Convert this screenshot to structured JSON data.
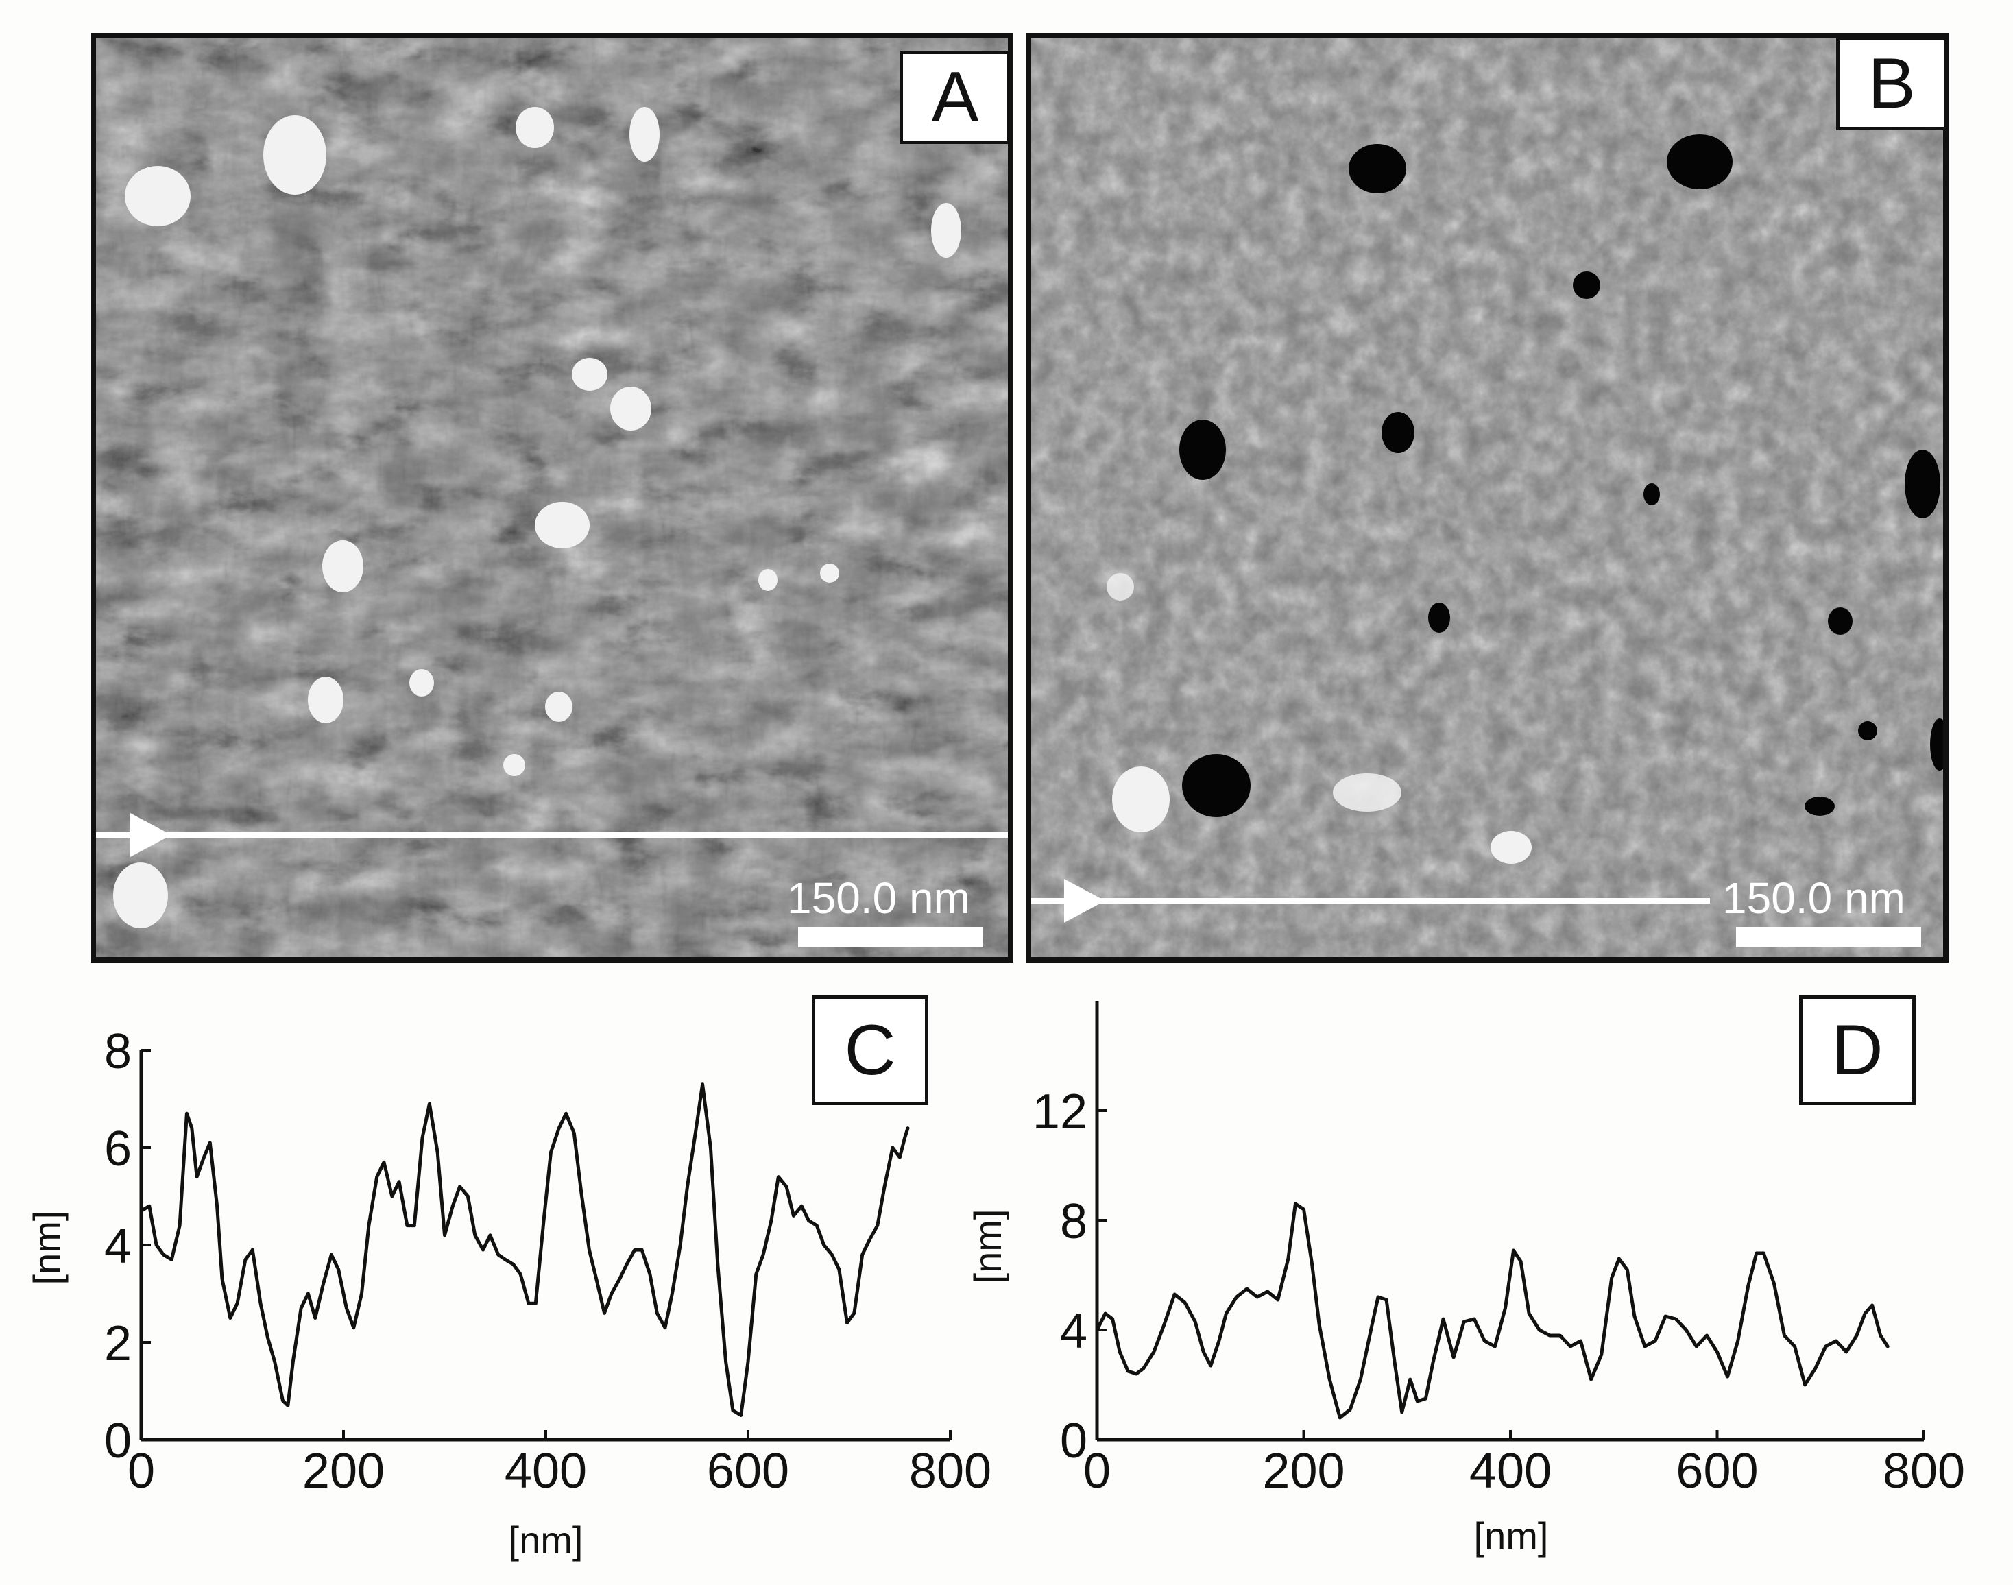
{
  "panels": {
    "a": {
      "label": "A",
      "scale_bar_text": "150.0 nm",
      "scale_bar_nm": 150
    },
    "b": {
      "label": "B",
      "scale_bar_text": "150.0 nm",
      "scale_bar_nm": 150
    },
    "c": {
      "label": "C"
    },
    "d": {
      "label": "D"
    }
  },
  "colors": {
    "line": "#111111",
    "profile_line": "#ffffff",
    "background": "#fdfdfb"
  },
  "chart_data": [
    {
      "type": "line",
      "panel": "C",
      "xlabel": "[nm]",
      "ylabel": "[nm]",
      "xlim": [
        0,
        800
      ],
      "ylim": [
        0,
        8
      ],
      "x_ticks": [
        0,
        200,
        400,
        600,
        800
      ],
      "y_ticks": [
        0,
        2,
        4,
        6,
        8
      ],
      "x_tick_labels": [
        "0",
        "200",
        "400",
        "600",
        "800"
      ],
      "y_tick_labels": [
        "0",
        "2",
        "4",
        "6",
        "8"
      ],
      "series": [
        {
          "x": [
            0,
            8,
            15,
            22,
            30,
            38,
            45,
            50,
            55,
            62,
            68,
            75,
            80,
            88,
            95,
            103,
            110,
            118,
            125,
            132,
            140,
            145,
            150,
            158,
            165,
            172,
            180,
            188,
            195,
            203,
            210,
            218,
            225,
            233,
            240,
            248,
            255,
            263,
            270,
            278,
            285,
            293,
            300,
            308,
            315,
            323,
            330,
            338,
            345,
            353,
            360,
            368,
            375,
            383,
            390,
            398,
            405,
            413,
            420,
            428,
            435,
            443,
            450,
            458,
            465,
            473,
            480,
            488,
            495,
            503,
            510,
            518,
            525,
            533,
            540,
            548,
            555,
            563,
            570,
            578,
            585,
            593,
            600,
            608,
            615,
            623,
            630,
            638,
            645,
            653,
            660,
            668,
            675,
            683,
            690,
            698,
            705,
            713,
            720,
            728,
            735,
            743,
            750,
            755,
            758
          ],
          "y": [
            4.7,
            4.8,
            4.0,
            3.8,
            3.7,
            4.4,
            6.7,
            6.4,
            5.4,
            5.8,
            6.1,
            4.8,
            3.3,
            2.5,
            2.8,
            3.7,
            3.9,
            2.8,
            2.1,
            1.6,
            0.8,
            0.7,
            1.6,
            2.7,
            3.0,
            2.5,
            3.2,
            3.8,
            3.5,
            2.7,
            2.3,
            3.0,
            4.4,
            5.4,
            5.7,
            5.0,
            5.3,
            4.4,
            4.4,
            6.2,
            6.9,
            5.9,
            4.2,
            4.8,
            5.2,
            5.0,
            4.2,
            3.9,
            4.2,
            3.8,
            3.7,
            3.6,
            3.4,
            2.8,
            2.8,
            4.5,
            5.9,
            6.4,
            6.7,
            6.3,
            5.1,
            3.9,
            3.3,
            2.6,
            3.0,
            3.3,
            3.6,
            3.9,
            3.9,
            3.4,
            2.6,
            2.3,
            3.0,
            4.0,
            5.2,
            6.3,
            7.3,
            6.0,
            3.6,
            1.6,
            0.6,
            0.5,
            1.6,
            3.4,
            3.8,
            4.5,
            5.4,
            5.2,
            4.6,
            4.8,
            4.5,
            4.4,
            4.0,
            3.8,
            3.5,
            2.4,
            2.6,
            3.8,
            4.1,
            4.4,
            5.2,
            6.0,
            5.8,
            6.2,
            6.4
          ]
        }
      ]
    },
    {
      "type": "line",
      "panel": "D",
      "xlabel": "[nm]",
      "ylabel": "[nm]",
      "xlim": [
        0,
        800
      ],
      "ylim": [
        0,
        16
      ],
      "x_ticks": [
        0,
        200,
        400,
        600,
        800
      ],
      "y_ticks": [
        0,
        4,
        8,
        12
      ],
      "x_tick_labels": [
        "0",
        "200",
        "400",
        "600",
        "800"
      ],
      "y_tick_labels": [
        "0",
        "4",
        "8",
        "12"
      ],
      "series": [
        {
          "x": [
            0,
            8,
            15,
            22,
            30,
            38,
            45,
            55,
            65,
            75,
            85,
            95,
            103,
            110,
            118,
            125,
            135,
            145,
            155,
            165,
            175,
            185,
            192,
            200,
            208,
            215,
            225,
            235,
            245,
            255,
            265,
            272,
            280,
            288,
            295,
            303,
            310,
            318,
            325,
            335,
            345,
            355,
            365,
            375,
            385,
            395,
            403,
            410,
            418,
            428,
            438,
            448,
            458,
            468,
            478,
            488,
            498,
            505,
            513,
            520,
            530,
            540,
            550,
            560,
            570,
            580,
            590,
            600,
            610,
            620,
            630,
            638,
            645,
            655,
            665,
            675,
            685,
            695,
            705,
            715,
            725,
            735,
            743,
            750,
            758,
            765
          ],
          "y": [
            4.0,
            4.6,
            4.4,
            3.2,
            2.5,
            2.4,
            2.6,
            3.2,
            4.2,
            5.3,
            5.0,
            4.3,
            3.2,
            2.7,
            3.6,
            4.6,
            5.2,
            5.5,
            5.2,
            5.4,
            5.1,
            6.6,
            8.6,
            8.4,
            6.4,
            4.2,
            2.2,
            0.8,
            1.1,
            2.2,
            4.0,
            5.2,
            5.1,
            2.8,
            1.0,
            2.2,
            1.4,
            1.5,
            2.8,
            4.4,
            3.0,
            4.3,
            4.4,
            3.6,
            3.4,
            4.8,
            6.9,
            6.5,
            4.6,
            4.0,
            3.8,
            3.8,
            3.4,
            3.6,
            2.2,
            3.1,
            5.9,
            6.6,
            6.2,
            4.5,
            3.4,
            3.6,
            4.5,
            4.4,
            4.0,
            3.4,
            3.8,
            3.2,
            2.3,
            3.6,
            5.6,
            6.8,
            6.8,
            5.7,
            3.8,
            3.4,
            2.0,
            2.6,
            3.4,
            3.6,
            3.2,
            3.8,
            4.6,
            4.9,
            3.8,
            3.4
          ]
        }
      ]
    }
  ]
}
